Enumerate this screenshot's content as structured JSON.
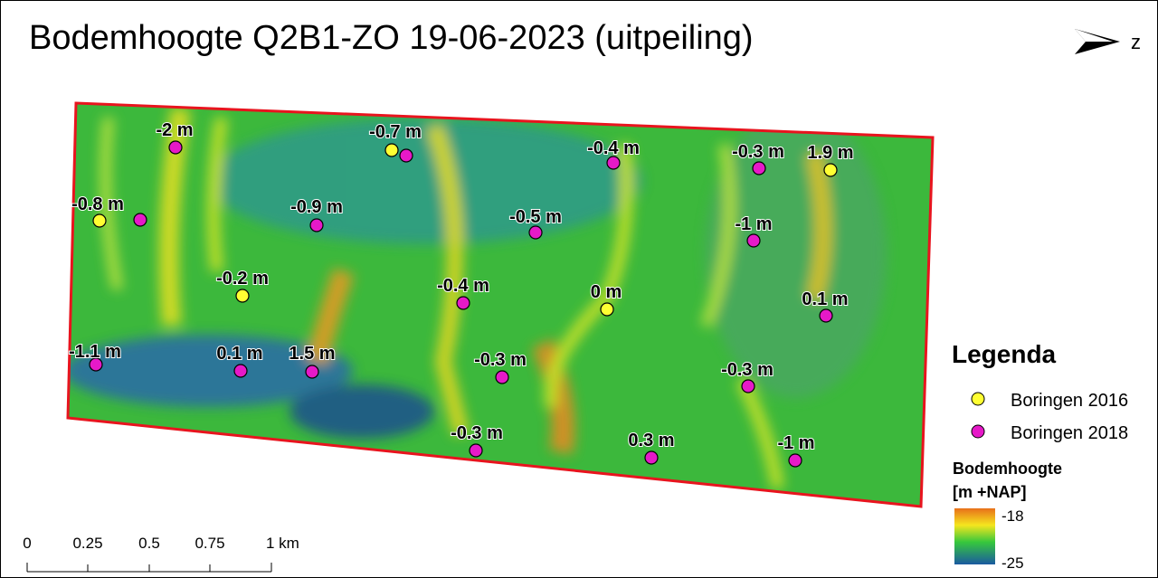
{
  "header": {
    "title": "Bodemhoogte Q2B1-ZO 19-06-2023 (uitpeiling)",
    "north": "z"
  },
  "map": {
    "labels": [
      "-2 m",
      "-0.8 m",
      "-0.7 m",
      "-0.4 m",
      "-0.3 m",
      "1.9 m",
      "-0.9 m",
      "-0.5 m",
      "-1 m",
      "-0.2 m",
      "-0.4 m",
      "0 m",
      "0.1 m",
      "-1.1 m",
      "0.1 m",
      "1.5 m",
      "-0.3 m",
      "-0.3 m",
      "-0.3 m",
      "0.3 m",
      "-1 m"
    ]
  },
  "legend": {
    "title": "Legenda",
    "items": [
      {
        "label": "Boringen 2016",
        "color": "#ffff33"
      },
      {
        "label": "Boringen 2018",
        "color": "#e619c8"
      }
    ],
    "ramp_title": "Bodemhoogte",
    "ramp_unit": "[m +NAP]",
    "ramp_max": "-18",
    "ramp_min": "-25"
  },
  "scale": {
    "ticks": [
      "0",
      "0.25",
      "0.5",
      "0.75",
      "1 km"
    ]
  }
}
